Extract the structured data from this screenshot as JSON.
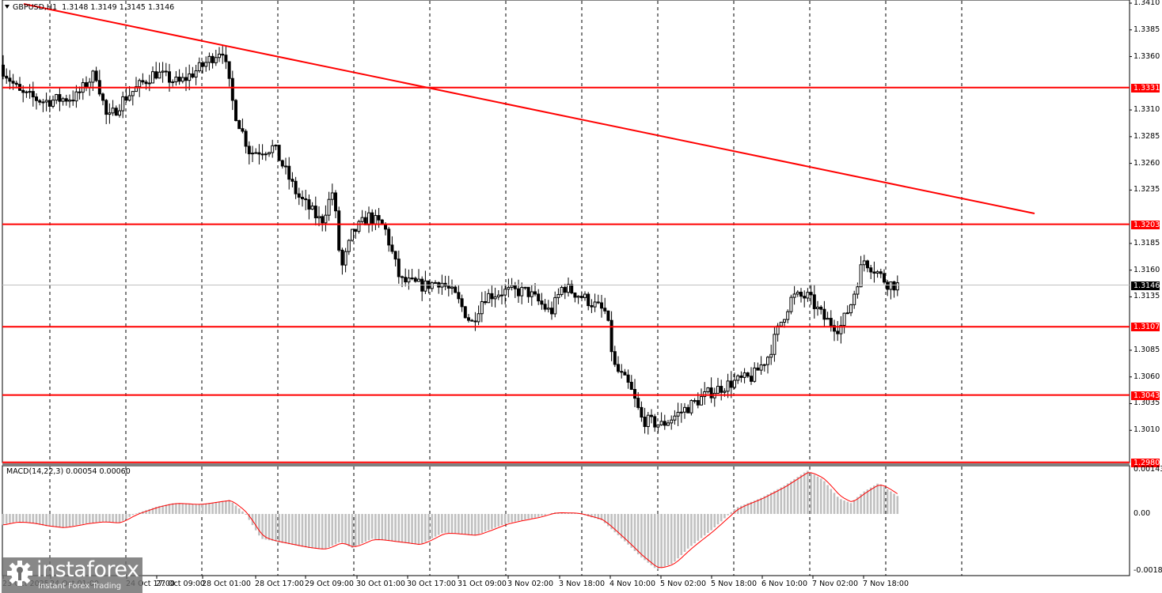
{
  "header": {
    "symbol": "GBPUSD,H1",
    "ohlc": "1.3148 1.3149 1.3145 1.3146"
  },
  "macd_header": "MACD(14,22,3) 0.00054 0.00060",
  "price_axis": {
    "ticks": [
      "1.3410",
      "1.3385",
      "1.3360",
      "1.3310",
      "1.3285",
      "1.3260",
      "1.3235",
      "1.3185",
      "1.3160",
      "1.3135",
      "1.3085",
      "1.3060",
      "1.3035",
      "1.3010"
    ],
    "levels": [
      {
        "label": "1.3331",
        "value": 1.3331,
        "color": "#ff0000"
      },
      {
        "label": "1.3203",
        "value": 1.3203,
        "color": "#ff0000"
      },
      {
        "label": "1.3107",
        "value": 1.3107,
        "color": "#ff0000"
      },
      {
        "label": "1.3043",
        "value": 1.3043,
        "color": "#ff0000"
      },
      {
        "label": "1.2980",
        "value": 1.298,
        "color": "#ff0000"
      }
    ],
    "current": {
      "label": "1.3146",
      "value": 1.3146,
      "color": "#000000"
    }
  },
  "macd_axis": {
    "ticks": [
      "0.00143",
      "0.00",
      "-0.00184"
    ]
  },
  "time_axis": [
    "23 Oct 2025",
    "24 Oct 01:00",
    "24 Oct 17:00",
    "27 Oct 09:00",
    "28 Oct 01:00",
    "28 Oct 17:00",
    "29 Oct 09:00",
    "30 Oct 01:00",
    "30 Oct 17:00",
    "31 Oct 09:00",
    "3 Nov 02:00",
    "3 Nov 18:00",
    "4 Nov 10:00",
    "5 Nov 02:00",
    "5 Nov 18:00",
    "6 Nov 10:00",
    "7 Nov 02:00",
    "7 Nov 18:00"
  ],
  "watermark": {
    "brand": "instaforex",
    "tagline": "Instant Forex Trading"
  },
  "colors": {
    "level": "#ff0000",
    "trendline": "#ff0000",
    "candle": "#000000",
    "macd_hist": "#c0c0c0",
    "macd_signal": "#ff0000",
    "grid": "#000000"
  },
  "chart_data": {
    "type": "candlestick",
    "title": "GBPUSD,H1 1.3148 1.3149 1.3145 1.3146",
    "timeframe": "H1",
    "ylim": [
      1.298,
      1.341
    ],
    "grid": "vertical dashed",
    "horizontal_levels": [
      1.3331,
      1.3203,
      1.3107,
      1.3043,
      1.298
    ],
    "trendline": {
      "from": {
        "time": "23 Oct 2025",
        "price": 1.341
      },
      "to": {
        "time": "~10 Nov",
        "price": 1.3213
      }
    },
    "last_price": 1.3146,
    "key_points": [
      {
        "time": "23 Oct",
        "price": 1.335
      },
      {
        "time": "24 Oct 17:00",
        "price": 1.329,
        "note": "low"
      },
      {
        "time": "28 Oct 01:00",
        "price": 1.337,
        "note": "high touching trendline"
      },
      {
        "time": "29 Oct 09:00",
        "price": 1.3205
      },
      {
        "time": "30 Oct 17:00",
        "price": 1.3145
      },
      {
        "time": "31 Oct 09:00",
        "price": 1.31,
        "note": "low"
      },
      {
        "time": "3 Nov 18:00",
        "price": 1.314
      },
      {
        "time": "5 Nov 02:00",
        "price": 1.301,
        "note": "low"
      },
      {
        "time": "6 Nov 10:00",
        "price": 1.314
      },
      {
        "time": "7 Nov 02:00",
        "price": 1.31
      },
      {
        "time": "7 Nov 18:00",
        "price": 1.3175,
        "note": "high"
      },
      {
        "time": "7 Nov 22:00",
        "price": 1.3146,
        "note": "last"
      }
    ],
    "indicator": {
      "name": "MACD(14,22,3)",
      "values": {
        "macd": 0.00054,
        "signal": 0.0006
      },
      "ylim": [
        -0.00184,
        0.00143
      ],
      "key_points": [
        {
          "time": "23 Oct",
          "value": -0.0002
        },
        {
          "time": "28 Oct 01:00",
          "value": 0.0003
        },
        {
          "time": "29 Oct 09:00",
          "value": -0.0008
        },
        {
          "time": "3 Nov 18:00",
          "value": 1e-05
        },
        {
          "time": "4 Nov 22:00",
          "value": -0.0018,
          "note": "min"
        },
        {
          "time": "5 Nov 18:00",
          "value": 0.0
        },
        {
          "time": "7 Nov 02:00",
          "value": 0.0014,
          "note": "max"
        },
        {
          "time": "7 Nov 10:00",
          "value": 0.0004
        },
        {
          "time": "7 Nov 18:00",
          "value": 0.0009
        },
        {
          "time": "7 Nov 22:00",
          "value": 0.00054
        }
      ]
    }
  }
}
